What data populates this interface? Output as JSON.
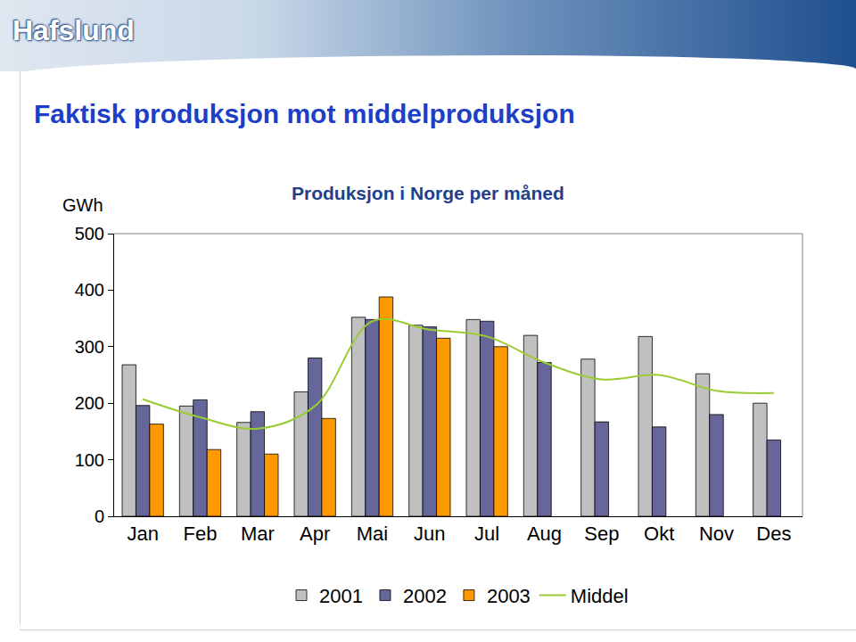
{
  "logo": "Hafslund",
  "chart_data": {
    "type": "bar",
    "title": "Faktisk produksjon mot middelproduksjon",
    "subtitle": "Produksjon i Norge per måned",
    "y_label": "GWh",
    "categories": [
      "Jan",
      "Feb",
      "Mar",
      "Apr",
      "Mai",
      "Jun",
      "Jul",
      "Aug",
      "Sep",
      "Okt",
      "Nov",
      "Des"
    ],
    "series": [
      {
        "name": "2001",
        "color": "#c0c0c0",
        "type": "bar",
        "values": [
          268,
          195,
          166,
          220,
          352,
          338,
          348,
          320,
          278,
          318,
          252,
          200
        ]
      },
      {
        "name": "2002",
        "color": "#66669a",
        "type": "bar",
        "values": [
          196,
          206,
          185,
          280,
          348,
          335,
          345,
          272,
          167,
          158,
          180,
          135
        ]
      },
      {
        "name": "2003",
        "color": "#ff9900",
        "type": "bar",
        "values": [
          163,
          118,
          110,
          173,
          388,
          315,
          300,
          null,
          null,
          null,
          null,
          null
        ]
      },
      {
        "name": "Middel",
        "color": "#99cc33",
        "type": "line",
        "line_style": "smooth",
        "values": [
          207,
          175,
          155,
          195,
          345,
          330,
          318,
          272,
          242,
          250,
          222,
          218
        ]
      }
    ],
    "ylim": [
      0,
      500
    ],
    "yticks": [
      0,
      100,
      200,
      300,
      400,
      500
    ],
    "grid": false,
    "legend": "bottom"
  }
}
